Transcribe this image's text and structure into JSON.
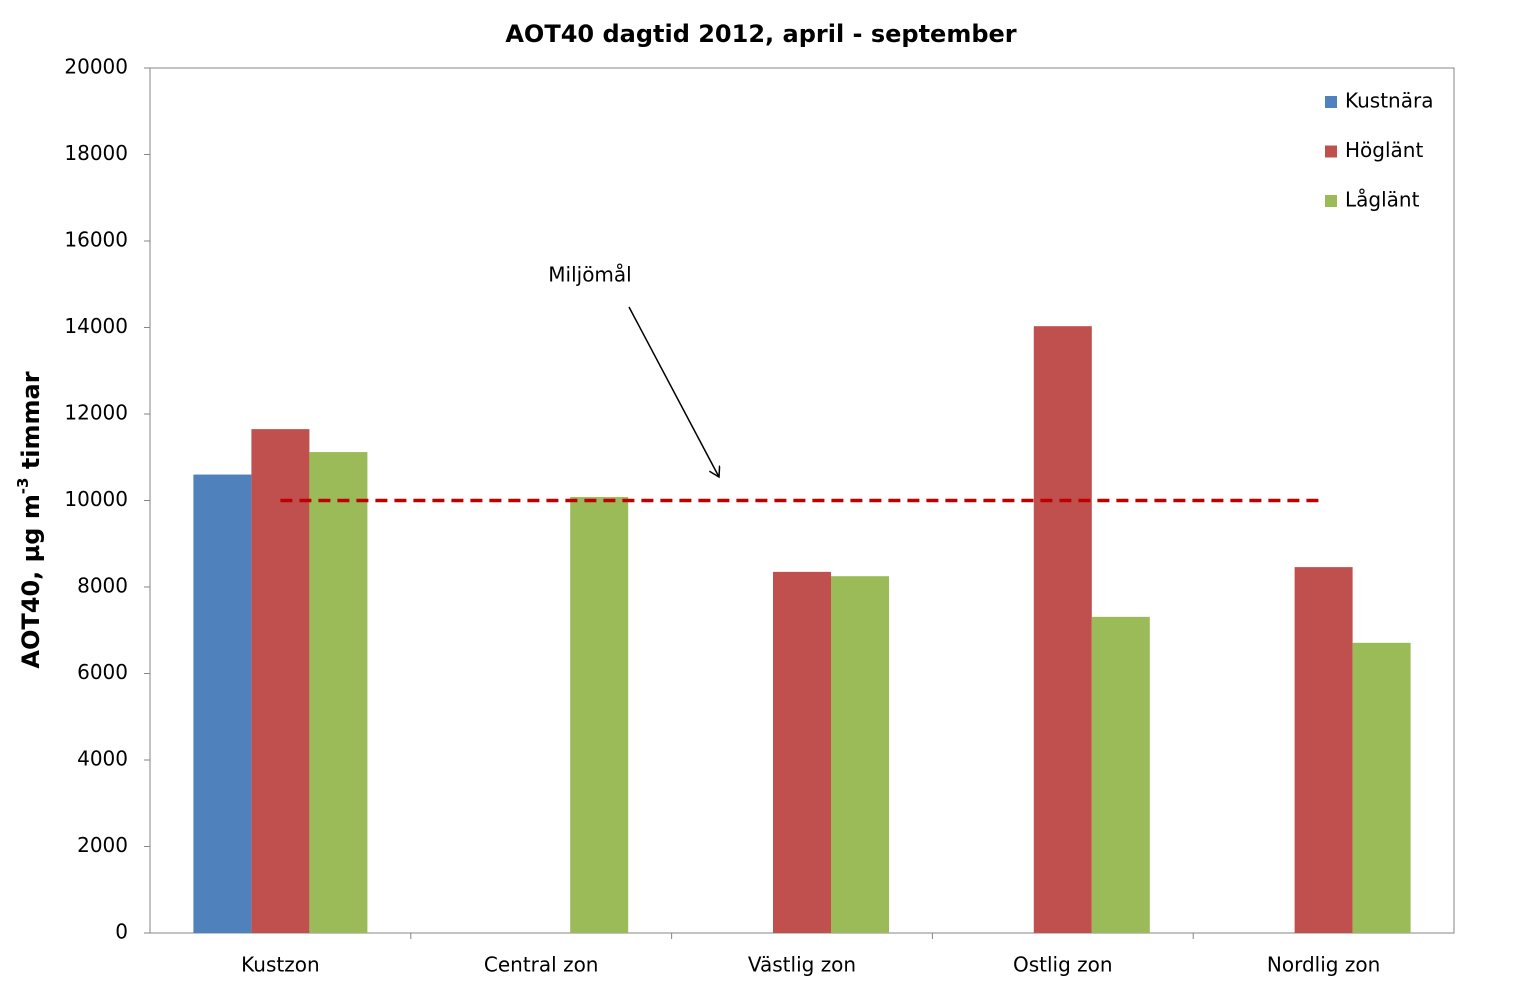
{
  "chart_data": {
    "type": "bar",
    "title": "AOT40 dagtid 2012, april - september",
    "ylabel": {
      "text": "AOT40, µg m",
      "sup": "-3",
      "suffix": " timmar"
    },
    "categories": [
      "Kustzon",
      "Central zon",
      "Västlig zon",
      "Ostlig zon",
      "Nordlig zon"
    ],
    "series": [
      {
        "name": "Kustnära",
        "color": "#4f81bd",
        "values": [
          10600,
          null,
          null,
          null,
          null
        ]
      },
      {
        "name": "Höglänt",
        "color": "#c0504d",
        "values": [
          11650,
          null,
          8350,
          14030,
          8460
        ]
      },
      {
        "name": "Låglänt",
        "color": "#9bbb59",
        "values": [
          11120,
          10080,
          8250,
          7310,
          6710
        ]
      }
    ],
    "target": {
      "label": "Miljömål",
      "value": 10000,
      "color": "#c00000"
    },
    "ylim": [
      0,
      20000
    ],
    "yticks": [
      0,
      2000,
      4000,
      6000,
      8000,
      10000,
      12000,
      14000,
      16000,
      18000,
      20000
    ],
    "grid": false,
    "legend": "top-right"
  }
}
